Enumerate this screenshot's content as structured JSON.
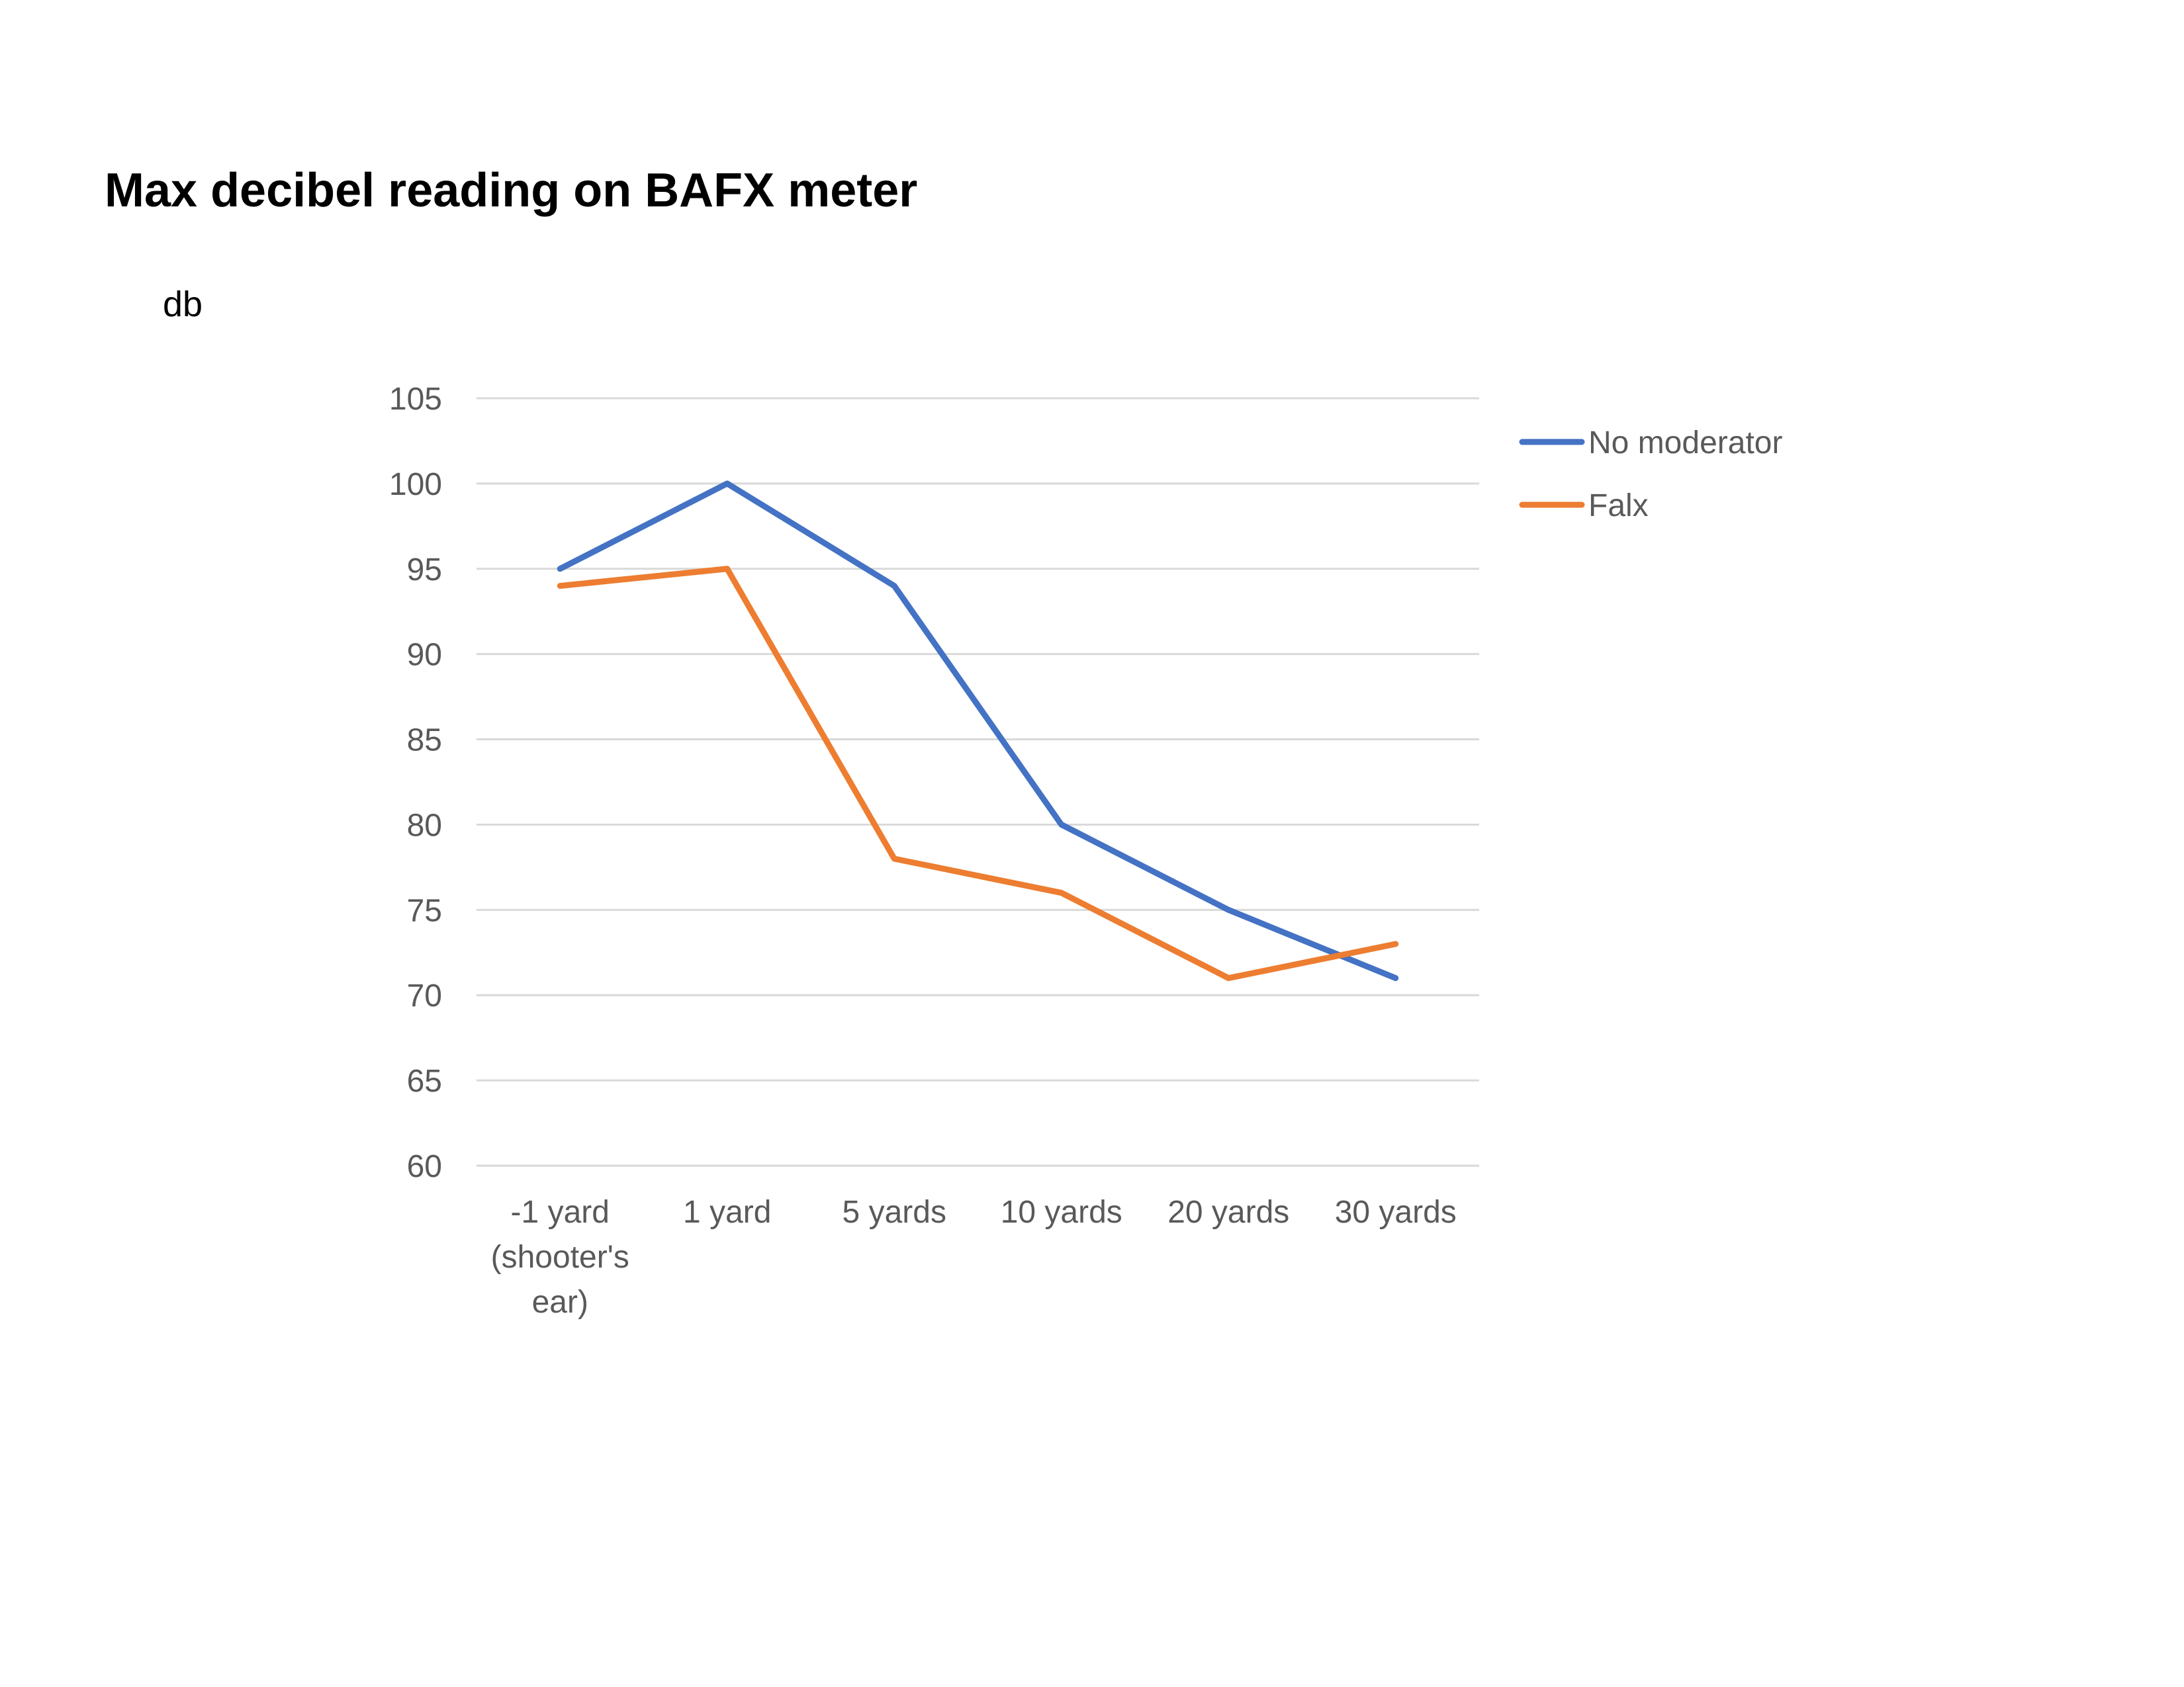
{
  "chart_data": {
    "type": "line",
    "title": "Max decibel reading on BAFX meter",
    "xlabel": "",
    "ylabel": "db",
    "categories": [
      [
        "-1 yard",
        "(shooter's",
        "ear)"
      ],
      [
        "1 yard"
      ],
      [
        "5 yards"
      ],
      [
        "10 yards"
      ],
      [
        "20 yards"
      ],
      [
        "30 yards"
      ]
    ],
    "ylim": [
      60,
      105
    ],
    "yticks": [
      60,
      65,
      70,
      75,
      80,
      85,
      90,
      95,
      100,
      105
    ],
    "grid": true,
    "legend_position": "right",
    "series": [
      {
        "name": "No moderator",
        "color": "#4472c4",
        "values": [
          95,
          100,
          94,
          80,
          75,
          71
        ]
      },
      {
        "name": "Falx",
        "color": "#ed7d31",
        "values": [
          94,
          95,
          78,
          76,
          71,
          73
        ]
      }
    ]
  }
}
